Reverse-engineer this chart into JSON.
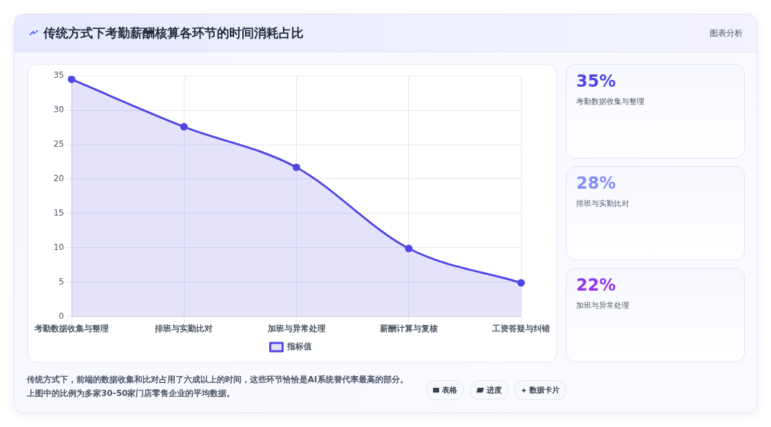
{
  "chart_data": [
    {
      "type": "area",
      "title": "传统方式下考勤薪酬核算各环节的时间消耗占比",
      "categories": [
        "考勤数据收集与整理",
        "排班与实勤比对",
        "加班与异常处理",
        "薪酬计算与复核",
        "工资答疑与纠错"
      ],
      "series": [
        {
          "name": "指标值",
          "color": "#4f46e5",
          "values": [
            34.5,
            27.6,
            21.7,
            9.9,
            4.9
          ]
        }
      ],
      "ylim": [
        0,
        35
      ],
      "yticks": [
        0,
        5,
        10,
        15,
        20,
        25,
        30,
        35
      ],
      "grid": true,
      "legend": "bottom",
      "marker": "circle",
      "annotations": [
        "图表分析",
        "传统方式下，前端的数据收集和比对占用了六成以上的时间，这些环节恰恰是AI系统替代率最高的部分。上图中的比例为多家30-50家门店零售企业的平均数据。",
        "表格",
        "进度",
        "数据卡片"
      ]
    },
    {
      "type": "other",
      "annotations": [
        "35%",
        "考勤数据收集与整理",
        "28%",
        "排班与实勤比对",
        "22%",
        "加班与异常处理"
      ]
    }
  ]
}
